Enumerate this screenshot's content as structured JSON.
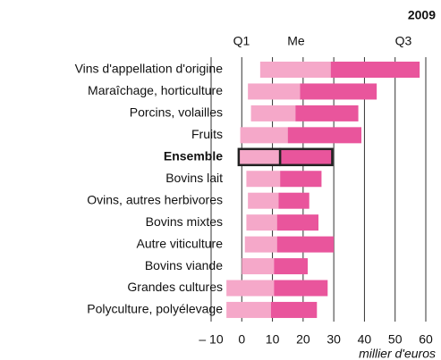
{
  "chart_data": {
    "type": "range-bar",
    "title": "2009",
    "categories": [
      "Vins d'appellation d'origine",
      "Maraîchage, horticulture",
      "Porcins, volailles",
      "Fruits",
      "Ensemble",
      "Bovins lait",
      "Ovins, autres herbivores",
      "Bovins mixtes",
      "Autre viticulture",
      "Bovins viande",
      "Grandes cultures",
      "Polyculture, polyélevage"
    ],
    "series": [
      {
        "name": "Q1",
        "values": [
          6,
          2,
          3,
          -0.5,
          -1,
          1.5,
          2,
          1.5,
          1,
          0,
          -5,
          -5
        ]
      },
      {
        "name": "Me",
        "values": [
          29,
          19,
          17.5,
          15,
          12.5,
          12.5,
          12,
          11.5,
          11.5,
          10.5,
          10.5,
          9.5
        ]
      },
      {
        "name": "Q3",
        "values": [
          58,
          44,
          38,
          39,
          29.5,
          26,
          22,
          25,
          30,
          21.5,
          28,
          24.5
        ]
      }
    ],
    "colors": [
      "#f5a8c9",
      "#e9559c"
    ],
    "highlight": "Ensemble",
    "xlim": [
      -10,
      60
    ],
    "xticks": [
      {
        "value": -10,
        "label": "– 10"
      },
      0,
      10,
      20,
      30,
      40,
      50,
      60
    ],
    "xlabel": "millier d'euros",
    "grid": true
  }
}
